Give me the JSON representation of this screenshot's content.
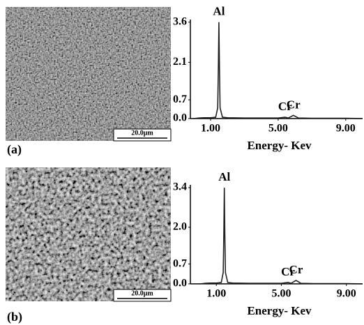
{
  "panels": [
    {
      "label": "(a)",
      "scale_bar": "20.0μm"
    },
    {
      "label": "(b)",
      "scale_bar": "20.0μm"
    }
  ],
  "chart_data": [
    {
      "type": "line",
      "color": "#222",
      "x": [
        0.0,
        0.3,
        0.6,
        1.0,
        1.3,
        1.42,
        1.46,
        1.49,
        1.52,
        1.56,
        1.7,
        2.0,
        3.0,
        4.0,
        5.0,
        5.41,
        5.6,
        5.9,
        6.2,
        7.0,
        8.0,
        9.0,
        10.0
      ],
      "values": [
        0,
        0.02,
        0.03,
        0.03,
        0.05,
        0.4,
        2.0,
        3.6,
        2.0,
        0.4,
        0.05,
        0.03,
        0.02,
        0.02,
        0.02,
        0.05,
        0.02,
        0.12,
        0.02,
        0.01,
        0.01,
        0.01,
        0
      ],
      "xlim": [
        -0.2,
        10
      ],
      "ylim": [
        0,
        3.7
      ],
      "xticks": [
        {
          "value": 1,
          "label": "1.00"
        },
        {
          "value": 5,
          "label": "5.00"
        },
        {
          "value": 9,
          "label": "9.00"
        }
      ],
      "yticks": [
        {
          "value": 0,
          "label": "0.0"
        },
        0.7,
        2.1,
        3.6
      ],
      "xlabel": "Energy- Kev",
      "annotations": [
        {
          "text": "Al",
          "x": 1.49
        },
        {
          "text": "Cr",
          "x": 5.41
        },
        {
          "text": "Cr",
          "x": 5.9
        }
      ]
    },
    {
      "type": "line",
      "color": "#222",
      "x": [
        0.0,
        0.3,
        0.6,
        1.0,
        1.3,
        1.42,
        1.46,
        1.49,
        1.52,
        1.56,
        1.7,
        2.0,
        3.0,
        4.0,
        5.0,
        5.41,
        5.6,
        5.9,
        6.2,
        7.0,
        8.0,
        9.0,
        10.0
      ],
      "values": [
        0,
        0.02,
        0.03,
        0.03,
        0.05,
        0.4,
        1.8,
        3.4,
        1.8,
        0.4,
        0.05,
        0.03,
        0.02,
        0.02,
        0.02,
        0.05,
        0.02,
        0.12,
        0.02,
        0.01,
        0.01,
        0.01,
        0
      ],
      "xlim": [
        -0.6,
        10
      ],
      "ylim": [
        0,
        3.5
      ],
      "xticks": [
        {
          "value": 1,
          "label": "1.00"
        },
        {
          "value": 5,
          "label": "5.00"
        },
        {
          "value": 9,
          "label": "9.00"
        }
      ],
      "yticks": [
        {
          "value": 0,
          "label": "0.0"
        },
        0.7,
        {
          "value": 2,
          "label": "2.0"
        },
        3.4
      ],
      "xlabel": "Energy- Kev",
      "annotations": [
        {
          "text": "Al",
          "x": 1.49
        },
        {
          "text": "Cr",
          "x": 5.41
        },
        {
          "text": "Cr",
          "x": 5.9
        }
      ]
    }
  ]
}
